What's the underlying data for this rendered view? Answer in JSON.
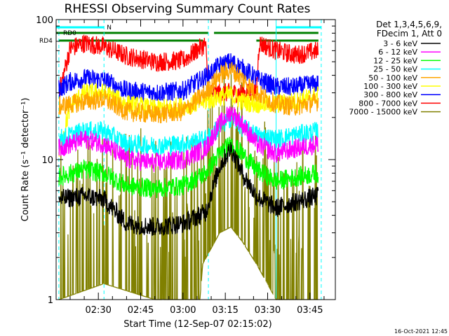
{
  "chart_data": {
    "type": "line",
    "title": "RHESSI Observing Summary Count Rates",
    "xlabel": "Start Time (12-Sep-07 02:15:02)",
    "ylabel": "Count Rate (s⁻¹ detector⁻¹)",
    "x_range": [
      "02:15:02",
      "03:54:00"
    ],
    "ylim": [
      1,
      100
    ],
    "yscale": "log",
    "x_ticks": [
      "02:30",
      "02:45",
      "03:00",
      "03:15",
      "03:30",
      "03:45"
    ],
    "y_ticks": [
      "1",
      "10",
      "100"
    ],
    "legend_header": [
      "Det 1,3,4,5,6,9,",
      "FDecim 1, Att 0"
    ],
    "legend_position": "right",
    "timestamp": "16-Oct-2021 12:45",
    "flags": [
      {
        "label": "N",
        "color": "#00ffff",
        "segments": [
          [
            "02:15",
            "02:32"
          ],
          [
            "03:33",
            "03:49"
          ]
        ]
      },
      {
        "label": "RD0",
        "color": "#008000",
        "segments": [
          [
            "02:15",
            "03:09"
          ],
          [
            "03:11",
            "03:48"
          ]
        ]
      },
      {
        "label": "RD4",
        "color": "#008000",
        "segments": [
          [
            "02:16",
            "03:07"
          ],
          [
            "03:26",
            "03:48"
          ]
        ]
      }
    ],
    "vlines": [
      "02:16",
      "02:32",
      "03:09",
      "03:33",
      "03:49"
    ],
    "series": [
      {
        "name": "3 - 6 keV",
        "color": "#000000",
        "points": [
          [
            "02:16",
            5.2
          ],
          [
            "02:25",
            5.5
          ],
          [
            "02:32",
            5.2
          ],
          [
            "02:40",
            3.5
          ],
          [
            "02:50",
            3.3
          ],
          [
            "03:00",
            3.5
          ],
          [
            "03:08",
            4.2
          ],
          [
            "03:13",
            9
          ],
          [
            "03:17",
            12
          ],
          [
            "03:21",
            8
          ],
          [
            "03:26",
            5.5
          ],
          [
            "03:33",
            4.5
          ],
          [
            "03:40",
            5
          ],
          [
            "03:48",
            5.5
          ]
        ]
      },
      {
        "name": "6 - 12 keV",
        "color": "#ff00ff",
        "points": [
          [
            "02:16",
            12
          ],
          [
            "02:25",
            14
          ],
          [
            "02:32",
            13
          ],
          [
            "02:40",
            10
          ],
          [
            "02:50",
            9.5
          ],
          [
            "03:00",
            10
          ],
          [
            "03:08",
            12
          ],
          [
            "03:13",
            18
          ],
          [
            "03:17",
            22
          ],
          [
            "03:21",
            18
          ],
          [
            "03:26",
            13
          ],
          [
            "03:33",
            11
          ],
          [
            "03:40",
            12
          ],
          [
            "03:48",
            13
          ]
        ]
      },
      {
        "name": "12 - 25 keV",
        "color": "#00ff00",
        "points": [
          [
            "02:16",
            7.5
          ],
          [
            "02:25",
            8.5
          ],
          [
            "02:32",
            8
          ],
          [
            "02:40",
            6.5
          ],
          [
            "02:50",
            6.2
          ],
          [
            "03:00",
            6.5
          ],
          [
            "03:08",
            8
          ],
          [
            "03:13",
            11
          ],
          [
            "03:17",
            13
          ],
          [
            "03:21",
            11
          ],
          [
            "03:26",
            8.5
          ],
          [
            "03:33",
            7
          ],
          [
            "03:40",
            7.5
          ],
          [
            "03:48",
            8
          ]
        ]
      },
      {
        "name": "25 - 50 keV",
        "color": "#00ffff",
        "points": [
          [
            "02:16",
            14
          ],
          [
            "02:25",
            16
          ],
          [
            "02:32",
            16
          ],
          [
            "02:40",
            13
          ],
          [
            "02:50",
            12.5
          ],
          [
            "03:00",
            13
          ],
          [
            "03:08",
            14
          ],
          [
            "03:13",
            17
          ],
          [
            "03:17",
            20
          ],
          [
            "03:21",
            17
          ],
          [
            "03:26",
            15
          ],
          [
            "03:33",
            14
          ],
          [
            "03:40",
            15
          ],
          [
            "03:48",
            16
          ]
        ]
      },
      {
        "name": "50 - 100 keV",
        "color": "#ffa500",
        "points": [
          [
            "02:16",
            24
          ],
          [
            "02:25",
            26
          ],
          [
            "02:32",
            27
          ],
          [
            "02:40",
            22
          ],
          [
            "02:50",
            21
          ],
          [
            "03:00",
            22
          ],
          [
            "03:08",
            30
          ],
          [
            "03:13",
            40
          ],
          [
            "03:17",
            44
          ],
          [
            "03:21",
            38
          ],
          [
            "03:26",
            30
          ],
          [
            "03:33",
            25
          ],
          [
            "03:40",
            24
          ],
          [
            "03:48",
            26
          ]
        ]
      },
      {
        "name": "100 - 300 keV",
        "color": "#ffff00",
        "points": [
          [
            "02:16",
            11
          ],
          [
            "02:20",
            24
          ],
          [
            "02:25",
            30
          ],
          [
            "02:32",
            30
          ],
          [
            "02:40",
            25
          ],
          [
            "02:50",
            23
          ],
          [
            "03:00",
            24
          ],
          [
            "03:08",
            26
          ],
          [
            "03:13",
            28
          ],
          [
            "03:17",
            29
          ],
          [
            "03:21",
            26
          ],
          [
            "03:26",
            25
          ],
          [
            "03:33",
            25
          ],
          [
            "03:40",
            26
          ],
          [
            "03:48",
            29
          ]
        ]
      },
      {
        "name": "300 - 800 keV",
        "color": "#0000ff",
        "points": [
          [
            "02:16",
            32
          ],
          [
            "02:20",
            36
          ],
          [
            "02:25",
            38
          ],
          [
            "02:32",
            37
          ],
          [
            "02:40",
            31
          ],
          [
            "02:50",
            30
          ],
          [
            "03:00",
            31
          ],
          [
            "03:08",
            39
          ],
          [
            "03:13",
            47
          ],
          [
            "03:17",
            50
          ],
          [
            "03:21",
            45
          ],
          [
            "03:26",
            38
          ],
          [
            "03:33",
            33
          ],
          [
            "03:40",
            33
          ],
          [
            "03:48",
            35
          ]
        ]
      },
      {
        "name": "800 - 7000 keV",
        "color": "#ff0000",
        "points": [
          [
            "02:16",
            30
          ],
          [
            "02:20",
            62
          ],
          [
            "02:25",
            68
          ],
          [
            "02:32",
            64
          ],
          [
            "02:40",
            55
          ],
          [
            "02:50",
            50
          ],
          [
            "03:00",
            51
          ],
          [
            "03:08",
            67
          ],
          [
            "03:09",
            30
          ],
          [
            "03:26",
            30
          ],
          [
            "03:27",
            68
          ],
          [
            "03:33",
            60
          ],
          [
            "03:40",
            56
          ],
          [
            "03:48",
            60
          ]
        ]
      },
      {
        "name": "7000 - 15000 keV",
        "color": "#808000",
        "points": [
          [
            "02:16",
            1
          ],
          [
            "02:32",
            1.3
          ],
          [
            "02:50",
            1
          ],
          [
            "03:06",
            1
          ],
          [
            "03:07",
            1.8
          ],
          [
            "03:13",
            3
          ],
          [
            "03:17",
            3.3
          ],
          [
            "03:21",
            2.6
          ],
          [
            "03:26",
            1.8
          ],
          [
            "03:33",
            1
          ],
          [
            "03:48",
            1
          ]
        ]
      }
    ]
  }
}
